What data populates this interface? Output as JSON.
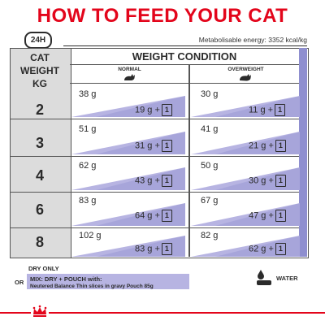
{
  "title": "HOW TO FEED YOUR CAT",
  "badge": "24H",
  "energy": "Metabolisable energy: 3352 kcal/kg",
  "header": {
    "cat_weight": [
      "CAT",
      "WEIGHT",
      "KG"
    ],
    "weight_condition": "WEIGHT CONDITION",
    "normal": "NORMAL",
    "overweight": "OVERWEIGHT"
  },
  "pouch_label": "1",
  "rows": [
    {
      "kg": "2",
      "normal_dry": "38 g",
      "normal_mix": "19 g",
      "over_dry": "30 g",
      "over_mix": "11 g"
    },
    {
      "kg": "3",
      "normal_dry": "51 g",
      "normal_mix": "31 g",
      "over_dry": "41 g",
      "over_mix": "21 g"
    },
    {
      "kg": "4",
      "normal_dry": "62 g",
      "normal_mix": "43 g",
      "over_dry": "50 g",
      "over_mix": "30 g"
    },
    {
      "kg": "6",
      "normal_dry": "83 g",
      "normal_mix": "64 g",
      "over_dry": "67 g",
      "over_mix": "47 g"
    },
    {
      "kg": "8",
      "normal_dry": "102 g",
      "normal_mix": "83 g",
      "over_dry": "82 g",
      "over_mix": "62 g"
    }
  ],
  "footer": {
    "dry_only": "DRY ONLY",
    "or": "OR",
    "mix": "MIX: DRY + POUCH with:",
    "product": "Neutered Balance Thin slices in gravy Pouch 85g",
    "water": "WATER"
  },
  "colors": {
    "brand_red": "#e3051b",
    "purple": "#8f8fcf",
    "grey": "#dcdcdc"
  }
}
